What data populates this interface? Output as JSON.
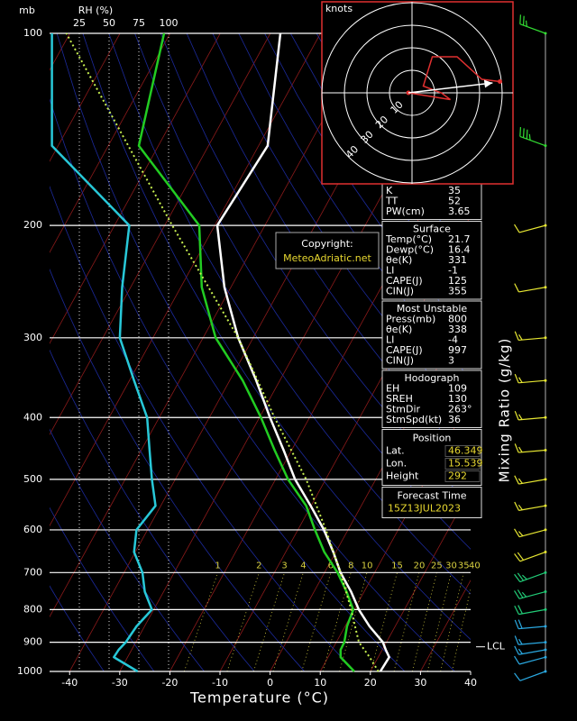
{
  "chart_data": {
    "type": "skewt",
    "y_unit_label": "mb",
    "rh_label": "RH (%)",
    "x_label": "Temperature (°C)",
    "mixing_label": "Mixing Ratio (g/kg)",
    "log_scale": true,
    "xlim": [
      -44,
      40
    ],
    "xticks": [
      -40,
      -30,
      -20,
      -10,
      0,
      10,
      20,
      30,
      40
    ],
    "ylim": [
      1000,
      100
    ],
    "yticks": [
      100,
      200,
      300,
      400,
      500,
      600,
      700,
      800,
      900,
      1000
    ],
    "rhlim": [
      0,
      100
    ],
    "rh_ticks": [
      25,
      50,
      75,
      100
    ],
    "levels": [
      1000,
      950,
      925,
      900,
      850,
      800,
      750,
      700,
      650,
      600,
      550,
      500,
      450,
      400,
      350,
      300,
      250,
      200,
      150,
      100
    ],
    "series": [
      {
        "color": "#ffffff",
        "values": [
          22.0,
          22.2,
          20.7,
          19.3,
          14.9,
          10.9,
          7.4,
          3.2,
          -0.5,
          -4.8,
          -10.1,
          -16.1,
          -21.6,
          -27.9,
          -34.7,
          -43.0,
          -51.3,
          -59.5,
          -58.2,
          -68.0
        ]
      },
      {
        "color": "#22cc22",
        "values": [
          16.8,
          12.5,
          11.7,
          11.6,
          10.4,
          9.8,
          6.5,
          2.6,
          -2.3,
          -6.6,
          -11.0,
          -17.5,
          -23.4,
          -29.7,
          -37.4,
          -47.5,
          -55.8,
          -63.1,
          -83.9,
          -91.2
        ]
      },
      {
        "color": "#28c8d8",
        "axis": "rh",
        "values": [
          74,
          54,
          58,
          64,
          73,
          86,
          80,
          78,
          71,
          73,
          89,
          86,
          84,
          82,
          71,
          59,
          61,
          67,
          2,
          2
        ]
      },
      {
        "color": "#c8f050",
        "dash": true,
        "levels": [
          1000,
          950,
          900,
          850,
          800,
          700,
          600,
          500,
          400,
          300,
          200,
          100
        ],
        "values": [
          21.6,
          18.3,
          14.5,
          12.0,
          9.4,
          3.2,
          -4.4,
          -13.9,
          -27.0,
          -43.0,
          -68.5,
          -110.7
        ]
      }
    ],
    "mixing_ratio": {
      "color": "#d8d040",
      "values": [
        1,
        2,
        3,
        4,
        6,
        8,
        10,
        15,
        20,
        25,
        30,
        35,
        40
      ]
    },
    "lcl": {
      "label": "LCL",
      "pressure": 915
    },
    "winds": {
      "levels": [
        1000,
        950,
        925,
        900,
        850,
        800,
        750,
        700,
        650,
        600,
        550,
        500,
        450,
        400,
        350,
        300,
        250,
        200,
        150,
        100
      ],
      "directions": [
        250,
        255,
        260,
        265,
        265,
        260,
        255,
        250,
        250,
        255,
        260,
        260,
        265,
        265,
        265,
        265,
        260,
        255,
        290,
        290
      ],
      "speeds": [
        10,
        10,
        15,
        15,
        20,
        20,
        25,
        25,
        20,
        15,
        15,
        15,
        15,
        15,
        15,
        15,
        10,
        10,
        35,
        25
      ],
      "colors": [
        "#2aa8e0",
        "#2aa8e0",
        "#2aa8e0",
        "#2aa8e0",
        "#2aa8e0",
        "#22cc77",
        "#22cc77",
        "#22cc77",
        "#e6e632",
        "#e6e632",
        "#e6e632",
        "#e6e632",
        "#e6e632",
        "#e6e632",
        "#e6e632",
        "#e6e632",
        "#e6e632",
        "#e6e632",
        "#33dd33",
        "#33dd33"
      ]
    }
  },
  "hodograph": {
    "title": "knots",
    "rings": [
      10,
      20,
      30,
      40
    ],
    "color": "#e03030",
    "u": [
      -1.6,
      17,
      13,
      5,
      9,
      20,
      31,
      39
    ],
    "v": [
      0,
      -3,
      0,
      3,
      16,
      16,
      6,
      5
    ]
  },
  "copyright": {
    "title": "Copyright:",
    "site": "MeteoAdriatic.net"
  },
  "panels": [
    {
      "rows": [
        {
          "label": "K",
          "value": 35
        },
        {
          "label": "TT",
          "value": 52
        },
        {
          "label": "PW(cm)",
          "value": 3.65
        }
      ]
    },
    {
      "title": "Surface",
      "rows": [
        {
          "label": "Temp(°C)",
          "value": 21.7
        },
        {
          "label": "Dewp(°C)",
          "value": 16.4
        },
        {
          "label": "θe(K)",
          "value": 331
        },
        {
          "label": "LI",
          "value": -1
        },
        {
          "label": "CAPE(J)",
          "value": 125
        },
        {
          "label": "CIN(J)",
          "value": 355
        }
      ]
    },
    {
      "title": "Most Unstable",
      "rows": [
        {
          "label": "Press(mb)",
          "value": 800
        },
        {
          "label": "θe(K)",
          "value": 338
        },
        {
          "label": "LI",
          "value": -4
        },
        {
          "label": "CAPE(J)",
          "value": 997
        },
        {
          "label": "CIN(J)",
          "value": 3
        }
      ]
    },
    {
      "title": "Hodograph",
      "rows": [
        {
          "label": "EH",
          "value": 109
        },
        {
          "label": "SREH",
          "value": 130
        },
        {
          "label": "StmDir",
          "value": 263,
          "value_label": "263°"
        },
        {
          "label": "StmSpd(kt)",
          "value": 36
        }
      ]
    },
    {
      "title": "Position",
      "value_color": "#e8d830",
      "rows": [
        {
          "label": "Lat.",
          "value": 46.349
        },
        {
          "label": "Lon.",
          "value": 15.539
        },
        {
          "label": "Height",
          "value": 292
        }
      ]
    },
    {
      "title": "Forecast Time",
      "value_color": "#e8d830",
      "rows": [
        {
          "value": "15Z13JUL2023"
        }
      ]
    }
  ]
}
